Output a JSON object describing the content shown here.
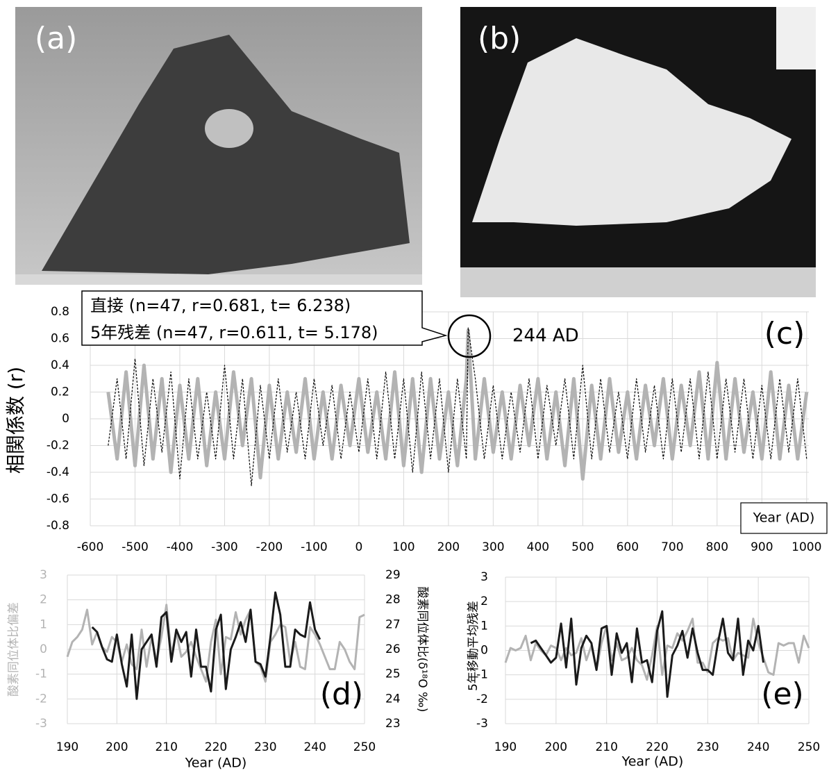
{
  "photo_labels": [
    "(a)",
    "(b)"
  ],
  "chart_data": [
    {
      "type": "line",
      "panel_label": "(c)",
      "ylabel": "相関係数 (r)",
      "xlabel": "Year (AD)",
      "annotations": [
        "直接 (n=47, r=0.681, t= 6.238)",
        "5年残差 (n=47, r=0.611, t= 5.178)",
        "244 AD"
      ],
      "grid": true,
      "x": [
        -560,
        -540,
        -520,
        -500,
        -480,
        -460,
        -440,
        -420,
        -400,
        -380,
        -360,
        -340,
        -320,
        -300,
        -280,
        -260,
        -240,
        -220,
        -200,
        -180,
        -160,
        -140,
        -120,
        -100,
        -80,
        -60,
        -40,
        -20,
        0,
        20,
        40,
        60,
        80,
        100,
        120,
        140,
        160,
        180,
        200,
        220,
        240,
        244,
        260,
        280,
        300,
        320,
        340,
        360,
        380,
        400,
        420,
        440,
        460,
        480,
        500,
        520,
        540,
        560,
        580,
        600,
        620,
        640,
        660,
        680,
        700,
        720,
        740,
        760,
        780,
        800,
        820,
        840,
        860,
        880,
        900,
        920,
        940,
        960,
        980,
        1000
      ],
      "series": [
        {
          "color": "#b3b3b3",
          "line_style": "solid",
          "values": [
            0.2,
            -0.3,
            0.35,
            -0.35,
            0.4,
            -0.3,
            0.3,
            -0.4,
            0.25,
            -0.3,
            0.3,
            -0.35,
            0.2,
            -0.3,
            0.35,
            -0.2,
            0.3,
            -0.44,
            0.25,
            -0.3,
            0.2,
            -0.25,
            0.3,
            -0.3,
            0.2,
            -0.3,
            0.25,
            -0.2,
            0.3,
            -0.25,
            0.2,
            -0.3,
            0.35,
            -0.35,
            0.3,
            -0.4,
            0.3,
            -0.3,
            0.2,
            -0.35,
            0.3,
            0.66,
            -0.3,
            0.3,
            -0.25,
            0.2,
            -0.3,
            0.25,
            -0.2,
            0.3,
            -0.3,
            0.2,
            -0.35,
            0.3,
            -0.45,
            0.25,
            -0.3,
            0.3,
            -0.25,
            0.2,
            -0.3,
            0.25,
            -0.2,
            0.3,
            -0.3,
            0.25,
            -0.2,
            0.35,
            -0.3,
            0.42,
            -0.3,
            0.3,
            -0.25,
            0.2,
            -0.3,
            0.35,
            -0.3,
            0.25,
            -0.3,
            0.2
          ]
        },
        {
          "color": "#000000",
          "line_style": "dashed",
          "values": [
            -0.2,
            0.3,
            -0.3,
            0.45,
            -0.35,
            0.3,
            -0.25,
            0.35,
            -0.45,
            0.3,
            -0.3,
            0.2,
            -0.3,
            0.4,
            -0.3,
            0.3,
            -0.5,
            0.25,
            -0.3,
            0.3,
            -0.25,
            0.2,
            -0.3,
            0.3,
            -0.2,
            0.25,
            -0.3,
            0.2,
            -0.25,
            0.3,
            -0.3,
            0.35,
            -0.3,
            0.3,
            -0.4,
            0.35,
            -0.3,
            0.3,
            -0.4,
            0.3,
            -0.3,
            0.68,
            0.3,
            -0.3,
            0.25,
            -0.3,
            0.2,
            -0.25,
            0.3,
            -0.3,
            0.25,
            -0.2,
            0.3,
            -0.3,
            0.4,
            -0.3,
            0.3,
            -0.25,
            0.2,
            -0.3,
            0.3,
            -0.25,
            0.25,
            -0.3,
            0.3,
            -0.25,
            0.3,
            -0.3,
            0.35,
            -0.3,
            0.3,
            -0.25,
            0.3,
            -0.3,
            0.25,
            -0.3,
            0.3,
            -0.25,
            0.3,
            -0.3
          ]
        }
      ],
      "xlim": [
        -600,
        1005
      ],
      "xticks": [
        -600,
        -500,
        -400,
        -300,
        -200,
        -100,
        0,
        100,
        200,
        300,
        400,
        500,
        600,
        700,
        800,
        900,
        1000
      ],
      "ylim": [
        -0.8,
        0.8
      ],
      "yticks": [
        -0.8,
        -0.6,
        -0.4,
        -0.2,
        0,
        0.2,
        0.4,
        0.6,
        0.8
      ]
    },
    {
      "type": "line",
      "panel_label": "(d)",
      "ylabel": "酸素同位体比偏差",
      "ylabel_color": "#b3b3b3",
      "y2label": "酸素同位体比(δ¹⁸O ‰)",
      "xlabel": "Year (AD)",
      "grid": true,
      "x": [
        190,
        191,
        192,
        193,
        194,
        195,
        196,
        197,
        198,
        199,
        200,
        201,
        202,
        203,
        204,
        205,
        206,
        207,
        208,
        209,
        210,
        211,
        212,
        213,
        214,
        215,
        216,
        217,
        218,
        219,
        220,
        221,
        222,
        223,
        224,
        225,
        226,
        227,
        228,
        229,
        230,
        231,
        232,
        233,
        234,
        235,
        236,
        237,
        238,
        239,
        240,
        241,
        242,
        243,
        244,
        245,
        246,
        247,
        248,
        249,
        250
      ],
      "series": [
        {
          "color": "#b3b3b3",
          "values": [
            -0.3,
            0.3,
            0.5,
            0.8,
            1.6,
            0.2,
            0.7,
            0.1,
            -0.1,
            0.5,
            0.3,
            -0.5,
            0.2,
            -0.6,
            -0.8,
            0.8,
            -0.7,
            0.5,
            -0.5,
            0.5,
            1.8,
            -0.2,
            0.7,
            -0.3,
            -0.1,
            0.3,
            -0.3,
            -0.8,
            -1.3,
            0.3,
            1.2,
            -1.0,
            0.5,
            0.4,
            1.5,
            0.6,
            1.2,
            1.6,
            -0.5,
            -0.7,
            -1.3,
            0.3,
            0.6,
            1.0,
            0.9,
            -0.5,
            0.3,
            -0.7,
            -0.8,
            0.9,
            0.6,
            0.2,
            -0.3,
            -0.8,
            -0.8,
            0.3,
            0,
            -0.5,
            -0.8,
            1.3,
            1.4
          ]
        },
        {
          "color": "#1a1a1a",
          "axis": "y2",
          "values": [
            null,
            null,
            null,
            null,
            null,
            26.9,
            26.7,
            26.1,
            25.6,
            25.5,
            26.6,
            25.4,
            24.5,
            26.6,
            24.0,
            26.0,
            26.3,
            26.6,
            25.3,
            27.3,
            27.5,
            25.5,
            26.8,
            26.3,
            26.7,
            24.9,
            26.8,
            25.3,
            25.3,
            24.3,
            26.8,
            27.4,
            24.4,
            26.0,
            26.5,
            27.1,
            26.3,
            27.6,
            25.5,
            25.4,
            24.9,
            26.5,
            28.3,
            27.4,
            25.3,
            25.3,
            26.8,
            26.6,
            26.5,
            27.9,
            26.8,
            26.4,
            null,
            null,
            null,
            null,
            null,
            null,
            null,
            null,
            null
          ]
        }
      ],
      "xlim": [
        190,
        250
      ],
      "xticks": [
        190,
        200,
        210,
        220,
        230,
        240,
        250
      ],
      "ylim": [
        -3,
        3
      ],
      "yticks": [
        -3,
        -2,
        -1,
        0,
        1,
        2,
        3
      ],
      "y2lim": [
        23,
        29
      ],
      "y2ticks": [
        23,
        24,
        25,
        26,
        27,
        28,
        29
      ]
    },
    {
      "type": "line",
      "panel_label": "(e)",
      "ylabel": "5年移動平均残差",
      "xlabel": "Year (AD)",
      "grid": true,
      "x": [
        190,
        191,
        192,
        193,
        194,
        195,
        196,
        197,
        198,
        199,
        200,
        201,
        202,
        203,
        204,
        205,
        206,
        207,
        208,
        209,
        210,
        211,
        212,
        213,
        214,
        215,
        216,
        217,
        218,
        219,
        220,
        221,
        222,
        223,
        224,
        225,
        226,
        227,
        228,
        229,
        230,
        231,
        232,
        233,
        234,
        235,
        236,
        237,
        238,
        239,
        240,
        241,
        242,
        243,
        244,
        245,
        246,
        247,
        248,
        249,
        250
      ],
      "series": [
        {
          "color": "#b3b3b3",
          "values": [
            -0.5,
            0.1,
            0,
            0.1,
            0.6,
            -0.4,
            0.3,
            0,
            -0.2,
            0.2,
            0.1,
            -0.4,
            0.1,
            -0.2,
            -0.1,
            0.5,
            -0.4,
            0.2,
            -0.8,
            0.3,
            1.0,
            -0.4,
            0.3,
            -0.4,
            -0.3,
            0.1,
            -0.4,
            -0.6,
            -1.2,
            -0.2,
            1.0,
            -1.0,
            0.2,
            0.1,
            0.7,
            0.4,
            0.8,
            1.3,
            -0.5,
            -0.5,
            -0.9,
            0.3,
            0.5,
            0.4,
            0.5,
            -0.4,
            -0.1,
            -0.2,
            -0.3,
            1.3,
            0.3,
            -0.3,
            -0.9,
            -1.0,
            0.3,
            0.2,
            0.3,
            0.3,
            -0.5,
            0.6,
            0.1
          ]
        },
        {
          "color": "#1a1a1a",
          "values": [
            null,
            null,
            null,
            null,
            null,
            0.3,
            0.4,
            0.1,
            -0.2,
            -0.5,
            -0.3,
            1.1,
            -0.7,
            1.3,
            -1.4,
            0.1,
            0.6,
            0.3,
            -0.8,
            0.9,
            1.0,
            -1.0,
            0.7,
            -0.1,
            0.3,
            -1.3,
            0.9,
            -0.5,
            -0.4,
            -1.3,
            0.8,
            1.6,
            -1.9,
            -0.2,
            0.2,
            0.8,
            -0.3,
            0.9,
            -0.1,
            -0.8,
            -0.8,
            -1.0,
            0.3,
            1.3,
            -0.1,
            -0.4,
            1.3,
            -1.0,
            0.4,
            0,
            1.0,
            -0.5,
            null,
            null,
            null,
            null,
            null,
            null,
            null,
            null,
            null
          ]
        }
      ],
      "xlim": [
        190,
        250
      ],
      "xticks": [
        190,
        200,
        210,
        220,
        230,
        240,
        250
      ],
      "ylim": [
        -3,
        3
      ],
      "yticks": [
        -3,
        -2,
        -1,
        0,
        1,
        2,
        3
      ]
    }
  ]
}
